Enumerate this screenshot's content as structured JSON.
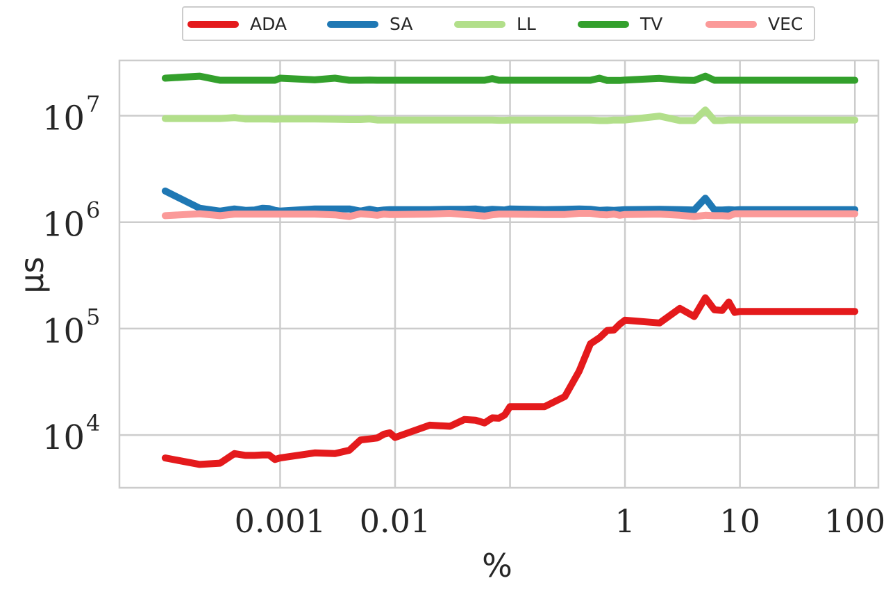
{
  "chart_data": {
    "type": "line",
    "xlabel": "%",
    "ylabel": "μs",
    "xscale": "log",
    "yscale": "log",
    "xlim": [
      4e-05,
      160
    ],
    "ylim": [
      3200,
      33000000
    ],
    "grid": true,
    "legend_position": "top-center",
    "x_ticks": [
      {
        "value": 0.001,
        "label": "0.001"
      },
      {
        "value": 0.01,
        "label": "0.01"
      },
      {
        "value": 1,
        "label": "1"
      },
      {
        "value": 10,
        "label": "10"
      },
      {
        "value": 100,
        "label": "100"
      }
    ],
    "x_grid_values": [
      0.001,
      0.01,
      0.1,
      1,
      10,
      100
    ],
    "y_ticks": [
      {
        "value": 10000,
        "base": "10",
        "exp": "4"
      },
      {
        "value": 100000,
        "base": "10",
        "exp": "5"
      },
      {
        "value": 1000000,
        "base": "10",
        "exp": "6"
      },
      {
        "value": 10000000,
        "base": "10",
        "exp": "7"
      }
    ],
    "x": [
      0.0001,
      0.0002,
      0.0003,
      0.0004,
      0.0005,
      0.0006,
      0.0007,
      0.0008,
      0.0009,
      0.001,
      0.002,
      0.003,
      0.004,
      0.005,
      0.006,
      0.007,
      0.008,
      0.009,
      0.01,
      0.02,
      0.03,
      0.04,
      0.05,
      0.06,
      0.07,
      0.08,
      0.09,
      0.1,
      0.2,
      0.3,
      0.4,
      0.5,
      0.6,
      0.7,
      0.8,
      0.9,
      1,
      2,
      3,
      4,
      5,
      6,
      7,
      8,
      9,
      10,
      20,
      30,
      40,
      50,
      60,
      70,
      80,
      90,
      100
    ],
    "series": [
      {
        "name": "ADA",
        "color": "#e41a1c",
        "values": [
          6100,
          5300,
          5450,
          6700,
          6450,
          6450,
          6500,
          6500,
          5900,
          6100,
          6800,
          6700,
          7200,
          9000,
          9200,
          9400,
          10200,
          10500,
          9500,
          12400,
          12100,
          14000,
          13800,
          13000,
          14500,
          14400,
          15500,
          18500,
          18500,
          23000,
          40000,
          72000,
          82000,
          96000,
          97000,
          110000,
          120000,
          113000,
          155000,
          130000,
          195000,
          150000,
          148000,
          178000,
          142000,
          145000,
          145000,
          145000,
          145000,
          145000,
          145000,
          145000,
          145000,
          145000,
          145000
        ]
      },
      {
        "name": "SA",
        "color": "#1f78b4",
        "values": [
          1960000,
          1350000,
          1270000,
          1330000,
          1290000,
          1300000,
          1350000,
          1340000,
          1290000,
          1270000,
          1330000,
          1330000,
          1330000,
          1270000,
          1320000,
          1280000,
          1300000,
          1310000,
          1310000,
          1310000,
          1320000,
          1320000,
          1330000,
          1300000,
          1320000,
          1310000,
          1300000,
          1330000,
          1310000,
          1320000,
          1330000,
          1320000,
          1290000,
          1300000,
          1290000,
          1300000,
          1310000,
          1320000,
          1310000,
          1300000,
          1680000,
          1300000,
          1300000,
          1310000,
          1300000,
          1310000,
          1310000,
          1310000,
          1310000,
          1310000,
          1310000,
          1310000,
          1310000,
          1310000,
          1310000
        ]
      },
      {
        "name": "LL",
        "color": "#b2df8a",
        "values": [
          9400000,
          9400000,
          9400000,
          9600000,
          9300000,
          9300000,
          9300000,
          9300000,
          9250000,
          9300000,
          9300000,
          9250000,
          9200000,
          9200000,
          9300000,
          9100000,
          9100000,
          9100000,
          9100000,
          9100000,
          9100000,
          9100000,
          9100000,
          9100000,
          9100000,
          9050000,
          9050000,
          9100000,
          9100000,
          9100000,
          9100000,
          9100000,
          9000000,
          9000000,
          9100000,
          9100000,
          9100000,
          9900000,
          9000000,
          9000000,
          11300000,
          9000000,
          9000000,
          9100000,
          9100000,
          9100000,
          9100000,
          9100000,
          9100000,
          9100000,
          9100000,
          9100000,
          9100000,
          9100000,
          9100000
        ]
      },
      {
        "name": "TV",
        "color": "#33a02c",
        "values": [
          22500000,
          23500000,
          21500000,
          21500000,
          21500000,
          21500000,
          21500000,
          21500000,
          21500000,
          22500000,
          21700000,
          22500000,
          21500000,
          21500000,
          21600000,
          21500000,
          21500000,
          21500000,
          21500000,
          21500000,
          21500000,
          21500000,
          21500000,
          21500000,
          22300000,
          21500000,
          21500000,
          21500000,
          21500000,
          21500000,
          21500000,
          21500000,
          22500000,
          21400000,
          21400000,
          21400000,
          21600000,
          22400000,
          21600000,
          21400000,
          23500000,
          21500000,
          21500000,
          21500000,
          21500000,
          21500000,
          21500000,
          21500000,
          21500000,
          21500000,
          21500000,
          21500000,
          21500000,
          21500000,
          21500000
        ]
      },
      {
        "name": "VEC",
        "color": "#fb9a99",
        "values": [
          1150000,
          1200000,
          1150000,
          1190000,
          1190000,
          1190000,
          1190000,
          1190000,
          1190000,
          1190000,
          1190000,
          1170000,
          1130000,
          1200000,
          1180000,
          1160000,
          1190000,
          1180000,
          1180000,
          1190000,
          1210000,
          1180000,
          1160000,
          1140000,
          1170000,
          1190000,
          1190000,
          1190000,
          1180000,
          1180000,
          1210000,
          1210000,
          1180000,
          1170000,
          1190000,
          1160000,
          1180000,
          1190000,
          1160000,
          1130000,
          1160000,
          1150000,
          1150000,
          1140000,
          1200000,
          1200000,
          1200000,
          1200000,
          1200000,
          1200000,
          1200000,
          1200000,
          1200000,
          1200000,
          1200000
        ]
      }
    ]
  }
}
